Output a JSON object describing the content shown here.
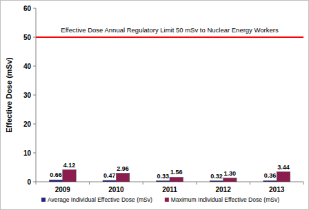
{
  "chart_data": {
    "type": "bar",
    "y_label": "Effective Dose (mSv)",
    "categories": [
      "2009",
      "2010",
      "2011",
      "2012",
      "2013"
    ],
    "series": [
      {
        "name": "Average Individual Effective Dose (mSv)",
        "color": "#26267e",
        "values": [
          0.66,
          0.47,
          0.33,
          0.32,
          0.36
        ]
      },
      {
        "name": "Maximum Individual Effective Dose (mSv)",
        "color": "#8b1c4d",
        "values": [
          4.12,
          2.96,
          1.56,
          1.3,
          3.44
        ],
        "value_labels": [
          "4.12",
          "2.96",
          "1.56",
          "1.30",
          "3.44"
        ]
      }
    ],
    "annotations": [
      {
        "text": "Effective Dose Annual Regulatory Limit 50 mSv to Nuclear Energy Workers",
        "y": 50,
        "color": "#ff0000"
      }
    ],
    "ylim": [
      0,
      60
    ],
    "yticks": [
      0,
      10,
      20,
      30,
      40,
      50,
      60
    ],
    "grid": false,
    "legend": "bottom",
    "data_labels": true
  }
}
